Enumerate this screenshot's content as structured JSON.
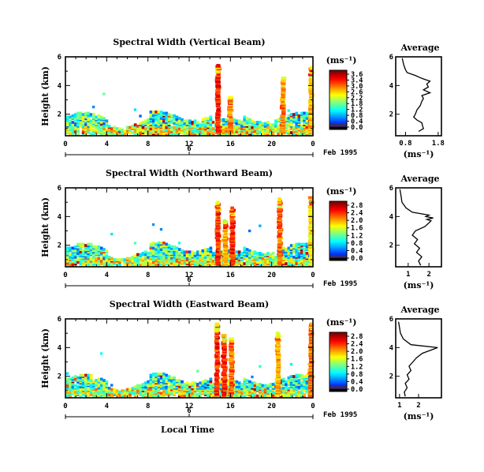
{
  "chart_data": [
    {
      "type": "heatmap",
      "title": "Spectral Width (Vertical Beam)",
      "ylabel": "Height (km)",
      "x_ticks": [
        "0",
        "4",
        "8",
        "12",
        "16",
        "20",
        "0"
      ],
      "y_ticks": [
        "2",
        "4",
        "6"
      ],
      "x_range": [
        0,
        24
      ],
      "y_range": [
        0.5,
        6
      ],
      "date_axis": {
        "label": "6",
        "date": "Feb 1995"
      },
      "colorbar": {
        "unit": "(ms⁻¹)",
        "ticks": [
          "3.6",
          "3.4",
          "3.0",
          "2.6",
          "2.2",
          "1.8",
          "1.2",
          "0.8",
          "0.4",
          "0.0"
        ],
        "range": [
          0,
          3.6
        ]
      },
      "features": [
        {
          "time": 14.8,
          "top_km": 5.4,
          "value": 3.4
        },
        {
          "time": 16.0,
          "top_km": 3.1,
          "value": 3.0
        },
        {
          "time": 21.1,
          "top_km": 4.5,
          "value": 3.0
        },
        {
          "time": 23.8,
          "top_km": 5.2,
          "value": 2.8
        }
      ],
      "average": {
        "title": "Average",
        "xlabel": "(ms⁻¹)",
        "x_ticks": [
          "0.8",
          "1.8"
        ],
        "y_ticks": [
          "2",
          "4",
          "6"
        ],
        "x_range": [
          0.5,
          1.9
        ],
        "y_range": [
          0.5,
          6
        ],
        "profile": [
          [
            1.2,
            0.8
          ],
          [
            1.35,
            1.0
          ],
          [
            1.32,
            1.2
          ],
          [
            1.3,
            1.4
          ],
          [
            1.15,
            1.6
          ],
          [
            1.05,
            1.8
          ],
          [
            1.1,
            2.0
          ],
          [
            1.15,
            2.3
          ],
          [
            1.25,
            2.6
          ],
          [
            1.3,
            2.9
          ],
          [
            1.35,
            3.1
          ],
          [
            1.3,
            3.3
          ],
          [
            1.55,
            3.5
          ],
          [
            1.35,
            3.7
          ],
          [
            1.5,
            3.9
          ],
          [
            1.45,
            4.1
          ],
          [
            1.55,
            4.3
          ],
          [
            1.3,
            4.5
          ],
          [
            1.1,
            4.7
          ],
          [
            0.85,
            4.9
          ],
          [
            0.8,
            5.1
          ],
          [
            0.75,
            5.4
          ],
          [
            0.72,
            5.7
          ],
          [
            0.7,
            5.9
          ]
        ]
      }
    },
    {
      "type": "heatmap",
      "title": "Spectral Width (Northward Beam)",
      "ylabel": "Height (km)",
      "x_ticks": [
        "0",
        "4",
        "8",
        "12",
        "16",
        "20",
        "0"
      ],
      "y_ticks": [
        "2",
        "4",
        "6"
      ],
      "x_range": [
        0,
        24
      ],
      "y_range": [
        0.5,
        6
      ],
      "date_axis": {
        "label": "6",
        "date": "Feb 1995"
      },
      "colorbar": {
        "unit": "(ms⁻¹)",
        "ticks": [
          "2.8",
          "2.4",
          "2.0",
          "1.6",
          "1.2",
          "0.8",
          "0.4",
          "0.0"
        ],
        "range": [
          0,
          2.8
        ]
      },
      "features": [
        {
          "time": 14.8,
          "top_km": 5.0,
          "value": 2.6
        },
        {
          "time": 15.5,
          "top_km": 3.7,
          "value": 2.2
        },
        {
          "time": 16.2,
          "top_km": 4.6,
          "value": 2.6
        },
        {
          "time": 20.8,
          "top_km": 5.2,
          "value": 2.4
        },
        {
          "time": 23.8,
          "top_km": 5.3,
          "value": 2.0
        }
      ],
      "average": {
        "title": "Average",
        "xlabel": "(ms⁻¹)",
        "x_ticks": [
          "1",
          "2"
        ],
        "y_ticks": [
          "2",
          "4",
          "6"
        ],
        "x_range": [
          0.4,
          2.6
        ],
        "y_range": [
          0.5,
          6
        ],
        "profile": [
          [
            1.6,
            0.6
          ],
          [
            1.5,
            0.9
          ],
          [
            1.65,
            1.2
          ],
          [
            1.4,
            1.5
          ],
          [
            1.55,
            1.8
          ],
          [
            1.3,
            2.1
          ],
          [
            1.45,
            2.4
          ],
          [
            1.2,
            2.7
          ],
          [
            1.35,
            3.0
          ],
          [
            1.8,
            3.3
          ],
          [
            1.95,
            3.5
          ],
          [
            2.1,
            3.7
          ],
          [
            1.9,
            3.8
          ],
          [
            2.2,
            3.9
          ],
          [
            1.85,
            4.0
          ],
          [
            2.0,
            4.1
          ],
          [
            1.2,
            4.3
          ],
          [
            0.9,
            4.6
          ],
          [
            0.7,
            5.0
          ],
          [
            0.65,
            5.5
          ],
          [
            0.6,
            5.9
          ]
        ]
      }
    },
    {
      "type": "heatmap",
      "title": "Spectral Width (Eastward Beam)",
      "ylabel": "Height (km)",
      "x_ticks": [
        "0",
        "4",
        "8",
        "12",
        "16",
        "20",
        "0"
      ],
      "y_ticks": [
        "2",
        "4",
        "6"
      ],
      "x_range": [
        0,
        24
      ],
      "y_range": [
        0.5,
        6
      ],
      "date_axis": {
        "label": "6",
        "date": "Feb 1995"
      },
      "colorbar": {
        "unit": "(ms⁻¹)",
        "ticks": [
          "2.8",
          "2.4",
          "2.0",
          "1.6",
          "1.2",
          "0.8",
          "0.4",
          "0.0"
        ],
        "range": [
          0,
          2.8
        ]
      },
      "features": [
        {
          "time": 14.7,
          "top_km": 5.6,
          "value": 2.6
        },
        {
          "time": 15.4,
          "top_km": 4.8,
          "value": 2.6
        },
        {
          "time": 16.1,
          "top_km": 4.6,
          "value": 2.4
        },
        {
          "time": 20.6,
          "top_km": 5.0,
          "value": 2.2
        },
        {
          "time": 23.8,
          "top_km": 5.6,
          "value": 2.4
        }
      ],
      "average": {
        "title": "Average",
        "xlabel": "(ms⁻¹)",
        "x_ticks": [
          "1",
          "2"
        ],
        "y_ticks": [
          "2",
          "4",
          "6"
        ],
        "x_range": [
          0.8,
          3.2
        ],
        "y_range": [
          0.5,
          6
        ],
        "profile": [
          [
            1.3,
            0.6
          ],
          [
            1.25,
            0.9
          ],
          [
            1.4,
            1.2
          ],
          [
            1.3,
            1.5
          ],
          [
            1.5,
            1.8
          ],
          [
            1.4,
            2.1
          ],
          [
            1.6,
            2.4
          ],
          [
            1.5,
            2.7
          ],
          [
            1.7,
            3.0
          ],
          [
            1.9,
            3.3
          ],
          [
            2.2,
            3.6
          ],
          [
            2.6,
            3.8
          ],
          [
            3.0,
            4.0
          ],
          [
            1.6,
            4.2
          ],
          [
            1.2,
            4.6
          ],
          [
            1.05,
            5.0
          ],
          [
            1.0,
            5.4
          ],
          [
            0.95,
            5.8
          ]
        ]
      }
    }
  ],
  "xlabel": "Local Time"
}
